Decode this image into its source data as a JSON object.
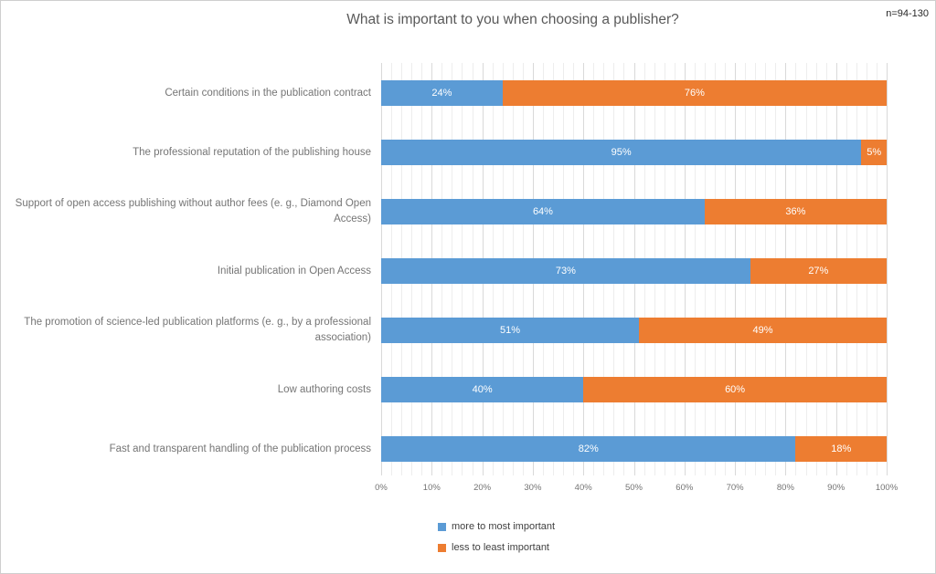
{
  "header": {
    "title": "What is important to you when choosing a publisher?",
    "sample_note": "n=94-130"
  },
  "chart_data": {
    "type": "bar",
    "orientation": "horizontal",
    "stacked": true,
    "title": "What is important to you when choosing a publisher?",
    "sample_note": "n=94-130",
    "categories": [
      "Certain conditions in the publication contract",
      "The professional reputation of the publishing house",
      "Support of open access publishing without author fees (e. g., Diamond Open Access)",
      "Initial publication in Open Access",
      "The promotion of science-led publication platforms (e. g., by a professional association)",
      "Low authoring costs",
      "Fast and transparent handling of the publication process"
    ],
    "series": [
      {
        "name": "more to most important",
        "color": "#5B9BD5",
        "values": [
          24,
          95,
          64,
          73,
          51,
          40,
          82
        ]
      },
      {
        "name": "less to least important",
        "color": "#ED7D31",
        "values": [
          76,
          5,
          36,
          27,
          49,
          60,
          18
        ]
      }
    ],
    "value_suffix": "%",
    "xlim": [
      0,
      100
    ],
    "x_ticks": [
      "0%",
      "10%",
      "20%",
      "30%",
      "40%",
      "50%",
      "60%",
      "70%",
      "80%",
      "90%",
      "100%"
    ],
    "gridlines": {
      "major_interval_pct": 10,
      "minor_interval_pct": 2,
      "major_color": "#d9d9d9",
      "minor_color": "#ededed"
    },
    "legend_position": "bottom-left",
    "data_labels": "inside-center-white"
  }
}
